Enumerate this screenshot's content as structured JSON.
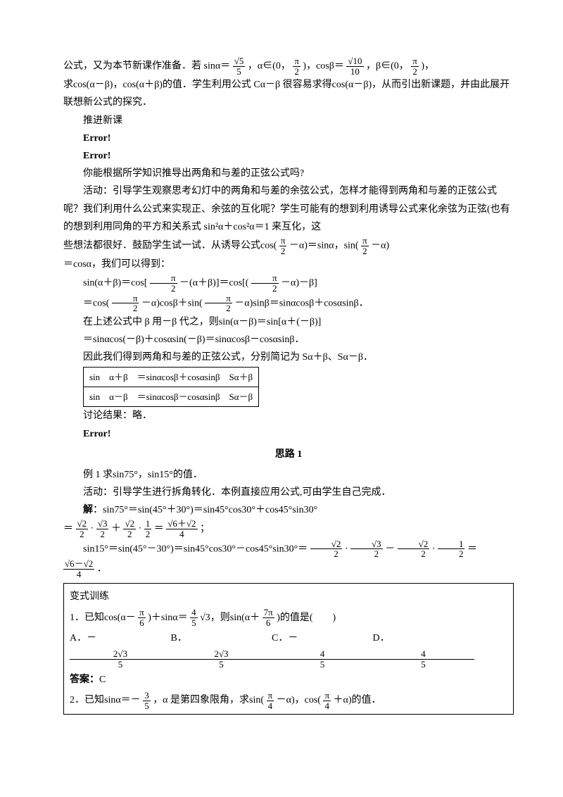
{
  "p1a": "公式，又为本节新课作准备．若 sinα＝",
  "f1n": "√5",
  "f1d": "5",
  "p1b": "，α∈(0，",
  "f2n": "π",
  "f2d": "2",
  "p1c": ")，cosβ＝",
  "f3n": "√10",
  "f3d": "10",
  "p1d": "，β∈(0，",
  "f4n": "π",
  "f4d": "2",
  "p1e": ")，",
  "p2": "求cos(α－β)，cos(α＋β)的值．学生利用公式 Cα－β 很容易求得cos(α－β)，从而引出新课题，并由此展开联想新公式的探究．",
  "p3": "推进新课",
  "err": "Error!",
  "p5": "你能根据所学知识推导出两角和与差的正弦公式吗?",
  "p6": "活动：引导学生观察思考幻灯中的两角和与差的余弦公式，怎样才能得到两角和与差的正弦公式呢？我们利用什么公式来实现正、余弦的互化呢？学生可能有的想到利用诱导公式来化余弦为正弦(也有的想到利用同角的平方和关系式 sin²α＋cos²α＝1 来互化，这",
  "p7a": "些想法都很好．鼓励学生试一试．从诱导公式cos(",
  "fpi2n": "π",
  "fpi2d": "2",
  "p7b": "－α)＝sinα，sin(",
  "p7c": "－α)",
  "p7d": "＝cosα，我们可以得到：",
  "eq1a": "sin(α＋β)＝cos[",
  "eq1b": "－(α＋β)]＝cos[(",
  "eq1c": "－α)－β]",
  "eq2a": "＝cos(",
  "eq2b": "－α)cosβ＋sin(",
  "eq2c": "－α)sinβ＝sinαcosβ＋cosαsinβ．",
  "eq3": "在上述公式中 β 用－β 代之，则sin(α－β)＝sin[α＋(－β)]",
  "eq4": "＝sinαcos(－β)＋cosαsin(－β)＝sinαcosβ－cosαsinβ．",
  "eq5": "因此我们得到两角和与差的正弦公式，分别简记为 Sα＋β、Sα－β．",
  "t1a": "sin　α＋β　＝sinαcosβ＋cosαsinβ　Sα＋β",
  "t1b": "sin　α－β　＝sinαcosβ－cosαsinβ　Sα－β",
  "disc": "讨论结果：略．",
  "s1": "思路 1",
  "ex1": "例 1 求sin75°，sin15°的值．",
  "ex1act": "活动：引导学生进行拆角转化．本例直接应用公式,可由学生自己完成．",
  "ex1sol": "解",
  "ex1solb": "：sin75°＝sin(45°＋30°)＝sin45°cos30°＋cos45°sin30°",
  "ex1l2a": "＝",
  "r2n": "√2",
  "r2d": "2",
  "r3n": "√3",
  "r3d": "2",
  "r1n": "1",
  "r1d": "2",
  "r6p2n": "√6＋√2",
  "r6p2d": "4",
  "ex1l2b": "·",
  "ex1l2c": "＋",
  "ex1l2d": "·",
  "ex1l2e": "＝",
  "ex1l2f": "；",
  "ex1l3a": "sin15°＝sin(45°－30°)＝sin45°cos30°－cos45°sin30°＝",
  "ex1l3b": "·",
  "ex1l3c": "－",
  "ex1l3d": "·",
  "ex1l3e": "＝",
  "r6m2n": "√6－√2",
  "r6m2d": "4",
  "ex1l4": "．",
  "vt": "变式训练",
  "q1a": "1．已知cos(α－",
  "fpi6n": "π",
  "fpi6d": "6",
  "q1b": ")＋sinα＝",
  "f45n": "4",
  "f45d": "5",
  "q1c": "√3，则sin(α＋",
  "f7pi6n": "7π",
  "f7pi6d": "6",
  "q1d": ")的值是(　　)",
  "optA": "A．－",
  "optAn": "2√3",
  "optAd": "5",
  "optB": "B．",
  "optBn": "2√3",
  "optBd": "5",
  "optC": "C．－",
  "optCn": "4",
  "optCd": "5",
  "optD": "D．",
  "optDn": "4",
  "optDd": "5",
  "ans": "答案：",
  "ansC": "C",
  "q2a": "2．已知sinα＝－",
  "f35n": "3",
  "f35d": "5",
  "q2b": "，α 是第四象限角，求sin(",
  "fpi4n": "π",
  "fpi4d": "4",
  "q2c": "－α)，cos(",
  "q2d": "＋α)的值．"
}
